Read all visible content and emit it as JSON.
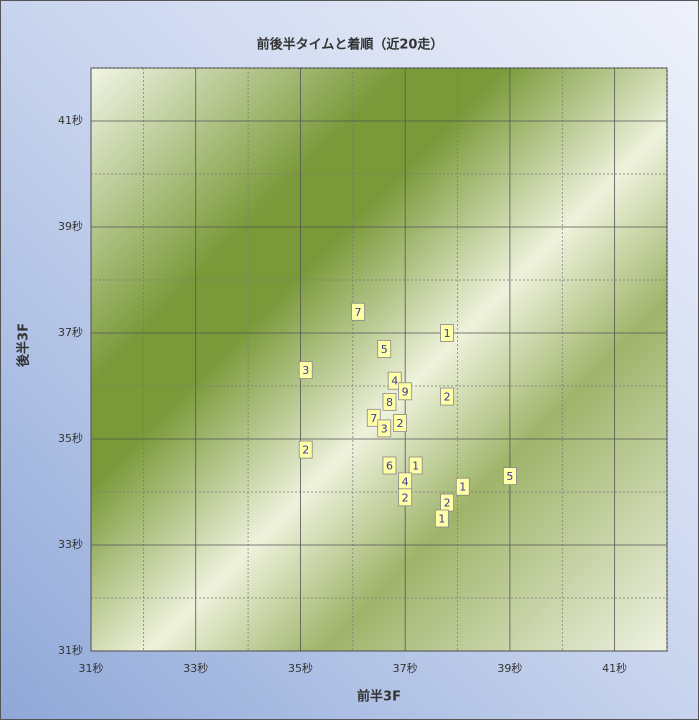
{
  "chart_data": {
    "type": "scatter",
    "title": "前後半タイムと着順（近20走）",
    "xlabel": "前半3F",
    "ylabel": "後半3F",
    "x": [
      36.1,
      37.8,
      36.6,
      35.1,
      36.8,
      37.0,
      37.8,
      36.7,
      36.4,
      36.9,
      36.6,
      35.1,
      36.7,
      37.2,
      39.0,
      37.0,
      38.1,
      37.0,
      37.8,
      37.7
    ],
    "y": [
      37.4,
      37.0,
      36.7,
      36.3,
      36.1,
      35.9,
      35.8,
      35.7,
      35.4,
      35.3,
      35.2,
      34.8,
      34.5,
      34.5,
      34.3,
      34.2,
      34.1,
      33.9,
      33.8,
      33.5
    ],
    "labels": [
      7,
      1,
      5,
      3,
      4,
      9,
      2,
      8,
      7,
      2,
      3,
      2,
      6,
      1,
      5,
      4,
      1,
      2,
      2,
      1
    ],
    "color": "#ffffa8",
    "xlim": [
      31,
      42
    ],
    "ylim": [
      31,
      42
    ],
    "xticks": [
      {
        "value": 31,
        "label": "31秒"
      },
      {
        "value": 33,
        "label": "33秒"
      },
      {
        "value": 35,
        "label": "35秒"
      },
      {
        "value": 37,
        "label": "37秒"
      },
      {
        "value": 39,
        "label": "39秒"
      },
      {
        "value": 41,
        "label": "41秒"
      }
    ],
    "yticks": [
      {
        "value": 31,
        "label": "31秒"
      },
      {
        "value": 33,
        "label": "33秒"
      },
      {
        "value": 35,
        "label": "35秒"
      },
      {
        "value": 37,
        "label": "37秒"
      },
      {
        "value": 39,
        "label": "39秒"
      },
      {
        "value": 41,
        "label": "41秒"
      }
    ],
    "minor_ticks": [
      32,
      34,
      36,
      38,
      40,
      42
    ],
    "grid": true
  }
}
